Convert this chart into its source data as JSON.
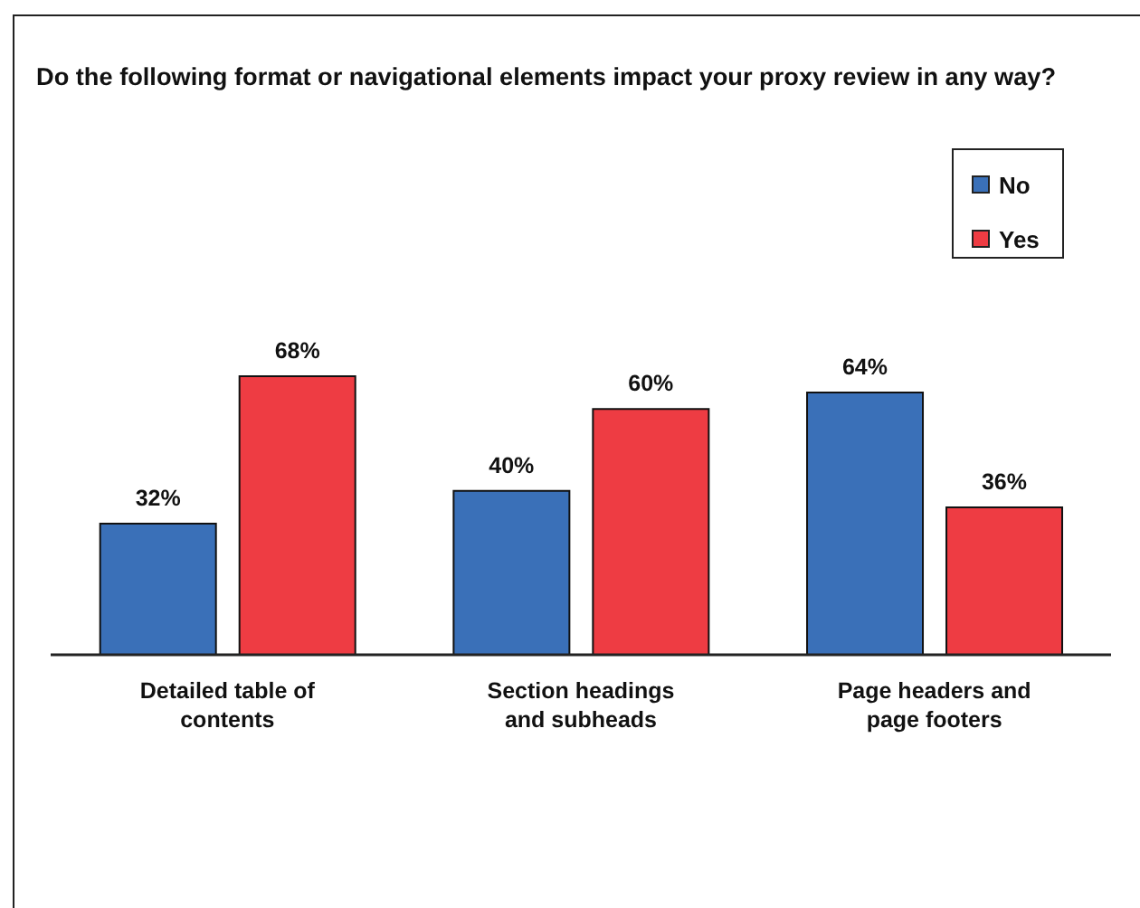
{
  "chart_data": {
    "type": "bar",
    "title": "Do the following format or navigational elements impact your proxy review in any way?",
    "categories": [
      "Detailed table of contents",
      "Section headings and subheads",
      "Page headers and page footers"
    ],
    "series": [
      {
        "name": "No",
        "color": "#3a70b8",
        "values": [
          32,
          40,
          64
        ],
        "value_labels": [
          "32%",
          "40%",
          "64%"
        ]
      },
      {
        "name": "Yes",
        "color": "#ee3c43",
        "values": [
          68,
          60,
          36
        ],
        "value_labels": [
          "68%",
          "60%",
          "36%"
        ]
      }
    ],
    "legend": "top right",
    "grid": false
  }
}
